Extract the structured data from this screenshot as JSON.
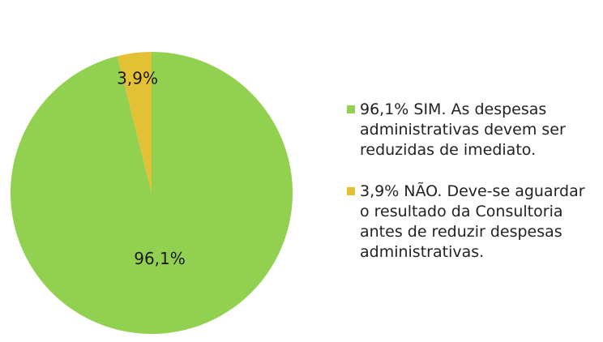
{
  "chart_data": {
    "type": "pie",
    "slices": [
      {
        "label": "96,1% SIM. As despesas administrativas devem ser reduzidas de imediato.",
        "value": 96.1,
        "data_label": "96,1%",
        "color": "#92d050"
      },
      {
        "label": "3,9% NÃO. Deve-se aguardar o resultado da Consultoria antes de reduzir despesas administrativas.",
        "value": 3.9,
        "data_label": "3,9%",
        "color": "#e4c034"
      }
    ],
    "legend_position": "right"
  }
}
